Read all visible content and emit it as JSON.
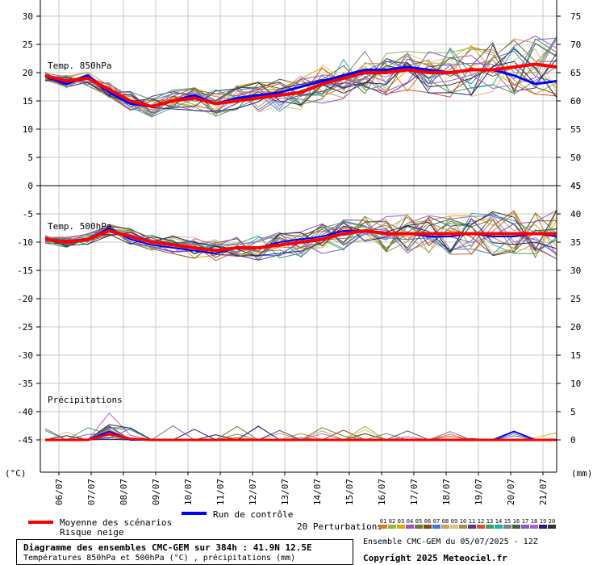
{
  "chart_data": [
    {
      "type": "line",
      "panel": "upper",
      "label": "Temp. 850hPa",
      "left_axis": {
        "range": [
          0,
          30
        ],
        "ticks": [
          0,
          5,
          10,
          15,
          20,
          25,
          30
        ]
      },
      "right_axis": {
        "range": [
          45,
          75
        ],
        "ticks": [
          45,
          50,
          55,
          60,
          65,
          70,
          75
        ]
      },
      "x_labels": [
        "06/07",
        "07/07",
        "08/07",
        "09/07",
        "10/07",
        "11/07",
        "12/07",
        "13/07",
        "14/07",
        "15/07",
        "16/07",
        "17/07",
        "18/07",
        "19/07",
        "20/07",
        "21/07"
      ],
      "grid": true,
      "series": [
        {
          "name": "Moyenne des scénarios",
          "values": [
            19.5,
            18.5,
            19.0,
            17.0,
            15.0,
            14.0,
            15.0,
            15.5,
            14.5,
            15.0,
            15.5,
            16.0,
            16.5,
            18.0,
            19.0,
            20.0,
            20.0,
            20.5,
            20.0,
            20.0,
            20.5,
            20.5,
            21.0,
            21.5,
            21.0
          ]
        },
        {
          "name": "Run de contrôle",
          "values": [
            19.5,
            18.0,
            19.5,
            16.5,
            14.5,
            14.0,
            15.0,
            16.0,
            14.5,
            15.5,
            16.0,
            16.5,
            17.5,
            18.5,
            19.5,
            20.5,
            20.5,
            21.0,
            20.5,
            20.0,
            20.5,
            20.5,
            19.5,
            18.0,
            18.5
          ]
        }
      ]
    },
    {
      "type": "line",
      "panel": "lower",
      "label": "Temp. 500hPa",
      "left_axis": {
        "range": [
          -45,
          0
        ],
        "ticks": [
          0,
          -5,
          -10,
          -15,
          -20,
          -25,
          -30,
          -35,
          -40,
          -45
        ]
      },
      "right_axis": {
        "range": [
          0,
          45
        ],
        "ticks": [
          0,
          5,
          10,
          15,
          20,
          25,
          30,
          35,
          40,
          45
        ]
      },
      "series": [
        {
          "name": "Moyenne des scénarios",
          "values": [
            -9.5,
            -10.0,
            -9.5,
            -8.0,
            -9.0,
            -10.0,
            -10.5,
            -11.0,
            -11.5,
            -11.0,
            -11.0,
            -10.5,
            -10.0,
            -9.5,
            -8.5,
            -8.0,
            -8.5,
            -8.5,
            -8.5,
            -8.5,
            -8.5,
            -8.5,
            -8.5,
            -8.5,
            -8.5
          ]
        },
        {
          "name": "Run de contrôle",
          "values": [
            -9.5,
            -10.0,
            -9.5,
            -7.5,
            -9.5,
            -10.5,
            -11.0,
            -11.5,
            -12.0,
            -11.0,
            -11.0,
            -10.0,
            -9.5,
            -9.0,
            -8.0,
            -8.0,
            -8.5,
            -8.5,
            -9.0,
            -9.0,
            -8.5,
            -9.0,
            -9.0,
            -8.5,
            -9.0
          ]
        }
      ]
    },
    {
      "type": "line",
      "panel": "lower",
      "label": "Précipitations",
      "axis": "right",
      "unit": "mm",
      "series": [
        {
          "name": "Moyenne des scénarios",
          "values": [
            0,
            0,
            0,
            1.0,
            0.2,
            0,
            0,
            0,
            0,
            0,
            0,
            0,
            0,
            0,
            0,
            0,
            0,
            0,
            0,
            0,
            0,
            0,
            0,
            0,
            0
          ]
        },
        {
          "name": "Run de contrôle",
          "values": [
            0,
            0,
            0,
            1.5,
            0,
            0,
            0,
            0,
            0,
            0,
            0,
            0,
            0,
            0,
            0,
            0,
            0,
            0,
            0,
            0,
            0,
            0,
            1.5,
            0,
            0
          ]
        }
      ]
    }
  ],
  "labels": {
    "temp850": "Temp. 850hPa",
    "temp500": "Temp. 500hPa",
    "precip": "Précipitations",
    "unit_left": "(°C)",
    "unit_right": "(mm)"
  },
  "legend": {
    "mean": "Moyenne des scénarios",
    "snow": "Risque neige",
    "control": "Run de contrôle",
    "perturbations": "20 Perturbations",
    "perturbation_ids": [
      "01",
      "02",
      "03",
      "04",
      "05",
      "06",
      "07",
      "08",
      "09",
      "10",
      "11",
      "12",
      "13",
      "14",
      "15",
      "16",
      "17",
      "18",
      "19",
      "20"
    ],
    "perturbation_colors": [
      "#e07a20",
      "#8fb84a",
      "#d9b000",
      "#9a50c8",
      "#6a7a2a",
      "#8b4513",
      "#3a78d8",
      "#c8a060",
      "#e0c080",
      "#a09050",
      "#5a3a8a",
      "#e05030",
      "#40a060",
      "#20b0b0",
      "#808080",
      "#406040",
      "#8060c0",
      "#b060d0",
      "#202080",
      "#303030"
    ],
    "colors": {
      "mean": "#ff0000",
      "control": "#0000ff"
    }
  },
  "footer": {
    "title": "Diagramme des ensembles CMC-GEM sur 384h : 41.9N 12.5E",
    "subtitle": "Températures 850hPa et 500hPa (°C) , précipitations (mm)",
    "run": "Ensemble CMC-GEM du 05/07/2025 - 12Z",
    "copyright": "Copyright 2025 Meteociel.fr"
  }
}
